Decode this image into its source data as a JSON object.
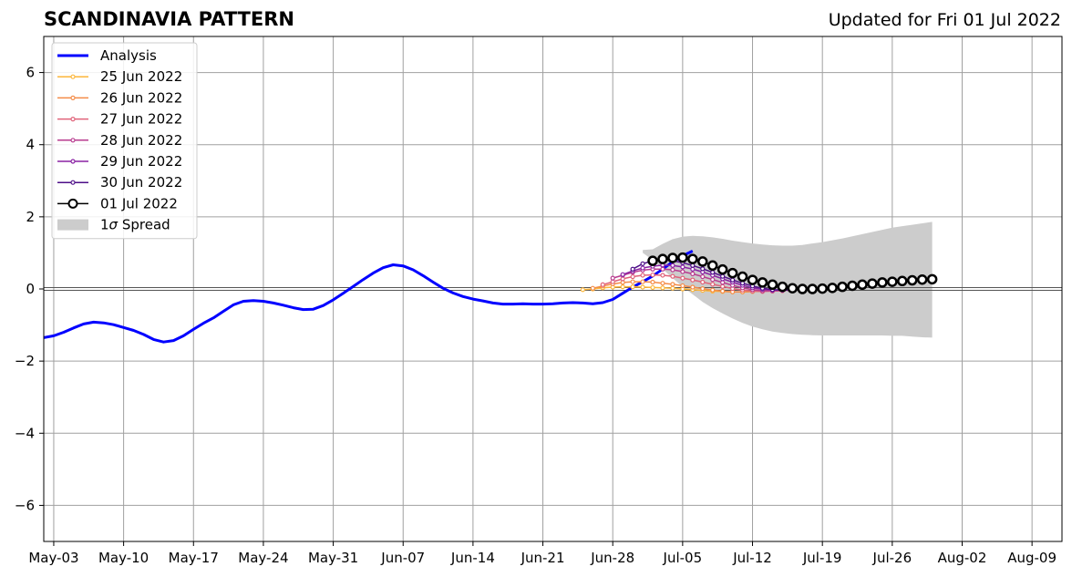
{
  "header": {
    "title": "SCANDINAVIA PATTERN",
    "updated": "Updated for Fri 01 Jul 2022"
  },
  "chart_data": {
    "type": "line",
    "title": "SCANDINAVIA PATTERN",
    "xlabel": "",
    "ylabel": "",
    "x_is_date": true,
    "xlim": [
      "2022-05-02",
      "2022-08-12"
    ],
    "ylim": [
      -7,
      7
    ],
    "x_ticks": [
      "2022-05-03",
      "2022-05-10",
      "2022-05-17",
      "2022-05-24",
      "2022-05-31",
      "2022-06-07",
      "2022-06-14",
      "2022-06-21",
      "2022-06-28",
      "2022-07-05",
      "2022-07-12",
      "2022-07-19",
      "2022-07-26",
      "2022-08-02",
      "2022-08-09"
    ],
    "x_tick_labels": [
      "May-03",
      "May-10",
      "May-17",
      "May-24",
      "May-31",
      "Jun-07",
      "Jun-14",
      "Jun-21",
      "Jun-28",
      "Jul-05",
      "Jul-12",
      "Jul-19",
      "Jul-26",
      "Aug-02",
      "Aug-09"
    ],
    "y_ticks": [
      -6,
      -4,
      -2,
      0,
      2,
      4,
      6
    ],
    "y_tick_labels": [
      "−6",
      "−4",
      "−2",
      "0",
      "2",
      "4",
      "6"
    ],
    "grid": true,
    "legend_position": "top-left",
    "series": [
      {
        "name": "Analysis",
        "color": "#0000ff",
        "style": "line",
        "start": "2022-05-02",
        "values": [
          -1.35,
          -1.3,
          -1.2,
          -1.08,
          -0.97,
          -0.92,
          -0.94,
          -0.99,
          -1.07,
          -1.15,
          -1.26,
          -1.4,
          -1.47,
          -1.43,
          -1.3,
          -1.12,
          -0.95,
          -0.8,
          -0.62,
          -0.44,
          -0.34,
          -0.32,
          -0.34,
          -0.39,
          -0.45,
          -0.52,
          -0.57,
          -0.56,
          -0.46,
          -0.3,
          -0.12,
          0.07,
          0.26,
          0.44,
          0.59,
          0.67,
          0.64,
          0.53,
          0.37,
          0.19,
          0.02,
          -0.11,
          -0.21,
          -0.28,
          -0.33,
          -0.39,
          -0.42,
          -0.42,
          -0.41,
          -0.42,
          -0.42,
          -0.41,
          -0.39,
          -0.38,
          -0.39,
          -0.41,
          -0.38,
          -0.29,
          -0.12,
          0.05,
          0.2,
          0.36,
          0.55,
          0.75,
          0.92,
          1.05
        ]
      },
      {
        "name": "25 Jun 2022",
        "color": "#fcb63a",
        "style": "small-markers",
        "start": "2022-06-25",
        "values": [
          -0.02,
          0.0,
          0.03,
          0.05,
          0.06,
          0.06,
          0.05,
          0.04,
          0.03,
          0.02,
          0.0,
          -0.02,
          -0.04,
          -0.06,
          -0.07,
          -0.08,
          -0.08,
          -0.07,
          -0.06
        ]
      },
      {
        "name": "26 Jun 2022",
        "color": "#f48c48",
        "style": "small-markers",
        "start": "2022-06-26",
        "values": [
          0.02,
          0.08,
          0.14,
          0.18,
          0.2,
          0.2,
          0.19,
          0.16,
          0.13,
          0.09,
          0.05,
          0.01,
          -0.03,
          -0.06,
          -0.08,
          -0.08,
          -0.07,
          -0.05,
          -0.04
        ]
      },
      {
        "name": "27 Jun 2022",
        "color": "#e0637a",
        "style": "small-markers",
        "start": "2022-06-27",
        "values": [
          0.12,
          0.2,
          0.28,
          0.34,
          0.38,
          0.39,
          0.38,
          0.35,
          0.3,
          0.25,
          0.19,
          0.13,
          0.07,
          0.01,
          -0.03,
          -0.06,
          -0.07,
          -0.06,
          -0.05
        ]
      },
      {
        "name": "28 Jun 2022",
        "color": "#b83b8f",
        "style": "small-markers",
        "start": "2022-06-28",
        "values": [
          0.3,
          0.38,
          0.46,
          0.52,
          0.55,
          0.55,
          0.53,
          0.48,
          0.42,
          0.34,
          0.26,
          0.18,
          0.1,
          0.03,
          -0.02,
          -0.05,
          -0.05,
          -0.04,
          -0.03
        ]
      },
      {
        "name": "29 Jun 2022",
        "color": "#8a22a4",
        "style": "small-markers",
        "start": "2022-06-29",
        "values": [
          0.4,
          0.5,
          0.58,
          0.63,
          0.66,
          0.65,
          0.61,
          0.55,
          0.47,
          0.38,
          0.28,
          0.19,
          0.1,
          0.03,
          -0.01,
          -0.03,
          -0.03,
          -0.02,
          -0.01
        ]
      },
      {
        "name": "30 Jun 2022",
        "color": "#4e0f88",
        "style": "small-markers",
        "start": "2022-06-30",
        "values": [
          0.55,
          0.7,
          0.78,
          0.8,
          0.78,
          0.73,
          0.65,
          0.56,
          0.46,
          0.35,
          0.25,
          0.16,
          0.08,
          0.02,
          -0.02,
          -0.03,
          -0.02,
          -0.01,
          0.0
        ]
      },
      {
        "name": "01 Jul 2022",
        "color": "#000000",
        "style": "open-markers",
        "start": "2022-07-02",
        "values": [
          0.78,
          0.83,
          0.86,
          0.87,
          0.83,
          0.76,
          0.65,
          0.54,
          0.44,
          0.34,
          0.25,
          0.18,
          0.12,
          0.06,
          0.02,
          0.0,
          0.0,
          0.01,
          0.03,
          0.06,
          0.09,
          0.12,
          0.15,
          0.18,
          0.2,
          0.22,
          0.24,
          0.26,
          0.27
        ]
      }
    ],
    "spread": {
      "name": "1σ Spread",
      "label": "1",
      "symbol": "σ",
      "label_rest": " Spread",
      "color": "#cccccc",
      "start": "2022-07-01",
      "upper": [
        1.08,
        1.1,
        1.25,
        1.38,
        1.45,
        1.47,
        1.46,
        1.43,
        1.39,
        1.34,
        1.3,
        1.26,
        1.23,
        1.21,
        1.2,
        1.2,
        1.22,
        1.26,
        1.3,
        1.35,
        1.4,
        1.46,
        1.52,
        1.58,
        1.64,
        1.7,
        1.74,
        1.78,
        1.82,
        1.86
      ],
      "lower": [
        1.0,
        0.8,
        0.55,
        0.3,
        0.06,
        -0.15,
        -0.36,
        -0.53,
        -0.68,
        -0.82,
        -0.94,
        -1.04,
        -1.12,
        -1.18,
        -1.22,
        -1.25,
        -1.27,
        -1.28,
        -1.29,
        -1.29,
        -1.29,
        -1.29,
        -1.29,
        -1.29,
        -1.29,
        -1.3,
        -1.3,
        -1.32,
        -1.34,
        -1.35
      ]
    }
  }
}
